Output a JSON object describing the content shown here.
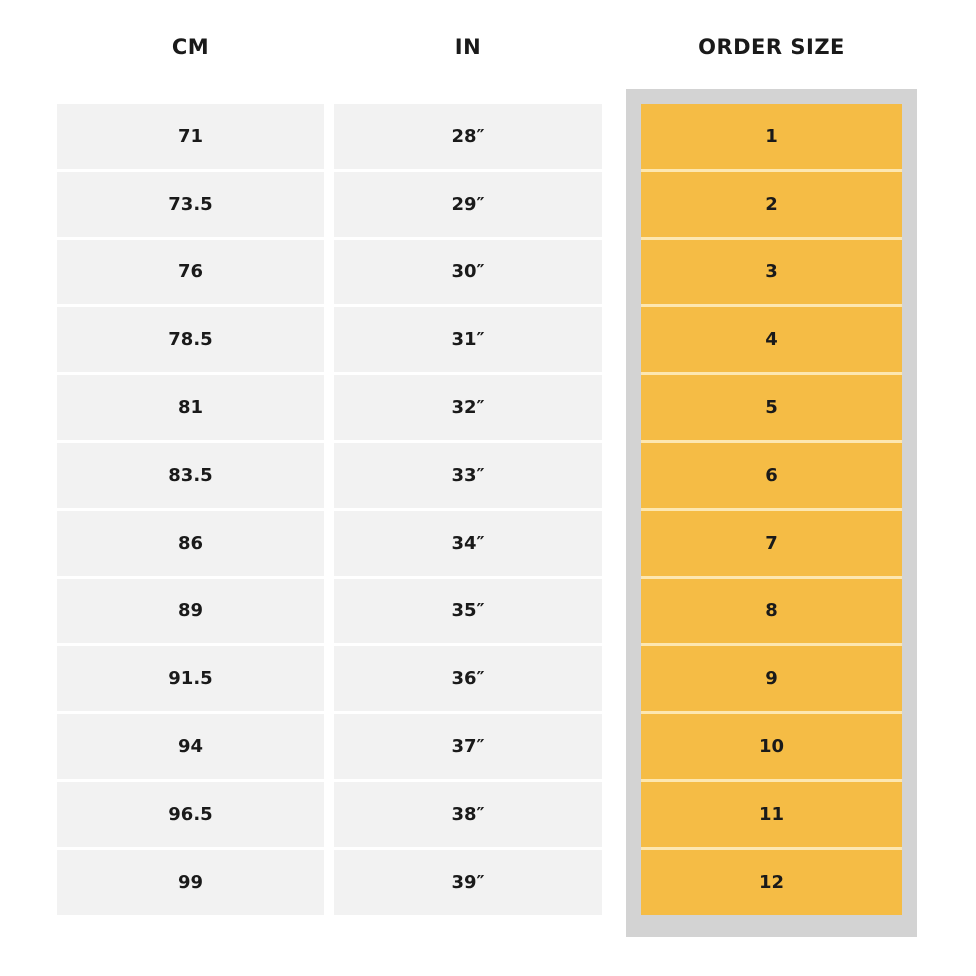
{
  "headers": {
    "cm": "CM",
    "in": "IN",
    "order_size": "ORDER SIZE"
  },
  "colors": {
    "highlight": "#F5BC45",
    "frame": "#D3D3D3",
    "cell": "#F2F2F2"
  },
  "rows": [
    {
      "cm": "71",
      "in": "28″",
      "size": "1"
    },
    {
      "cm": "73.5",
      "in": "29″",
      "size": "2"
    },
    {
      "cm": "76",
      "in": "30″",
      "size": "3"
    },
    {
      "cm": "78.5",
      "in": "31″",
      "size": "4"
    },
    {
      "cm": "81",
      "in": "32″",
      "size": "5"
    },
    {
      "cm": "83.5",
      "in": "33″",
      "size": "6"
    },
    {
      "cm": "86",
      "in": "34″",
      "size": "7"
    },
    {
      "cm": "89",
      "in": "35″",
      "size": "8"
    },
    {
      "cm": "91.5",
      "in": "36″",
      "size": "9"
    },
    {
      "cm": "94",
      "in": "37″",
      "size": "10"
    },
    {
      "cm": "96.5",
      "in": "38″",
      "size": "11"
    },
    {
      "cm": "99",
      "in": "39″",
      "size": "12"
    }
  ]
}
